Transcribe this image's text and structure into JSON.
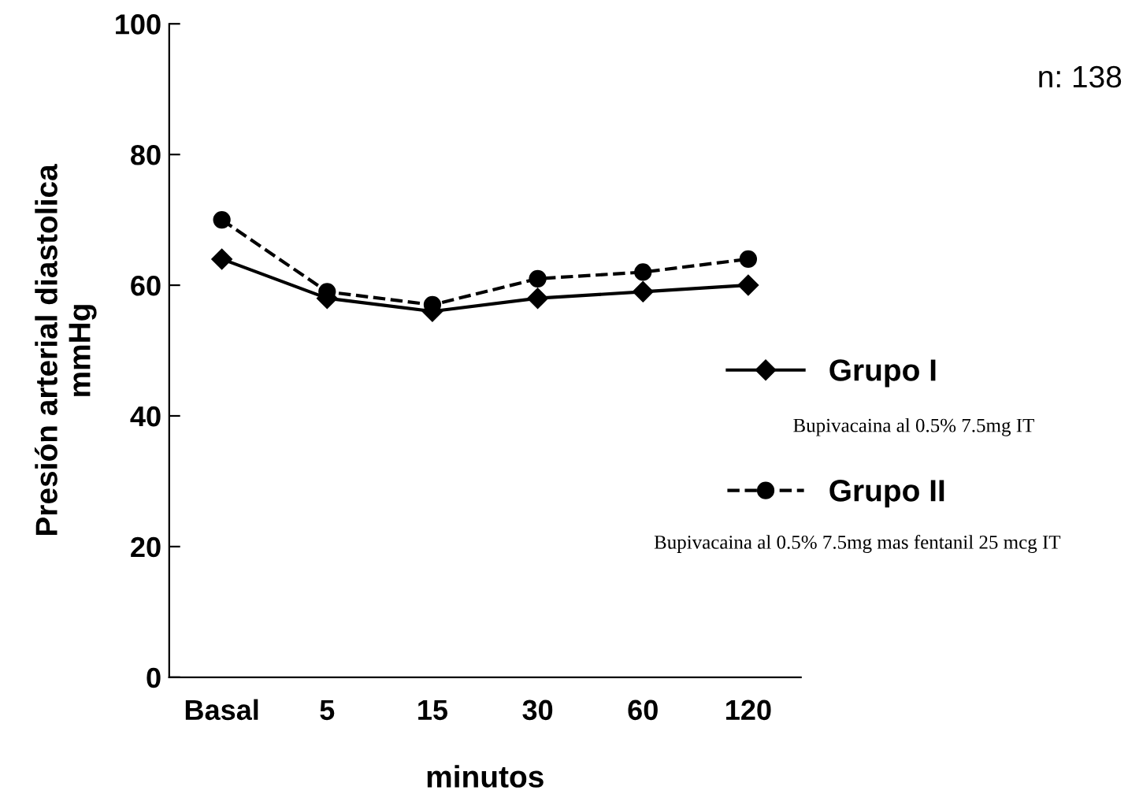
{
  "chart_data": {
    "type": "line",
    "xlabel": "minutos",
    "ylabel": "Presión arterial diastolica\nmmHg",
    "categories": [
      "Basal",
      "5",
      "15",
      "30",
      "60",
      "120"
    ],
    "series": [
      {
        "name": "Grupo I",
        "color": "#000000",
        "marker": "diamond",
        "line_style": "solid",
        "values": [
          64,
          58,
          56,
          58,
          59,
          60
        ]
      },
      {
        "name": "Grupo II",
        "color": "#000000",
        "marker": "circle",
        "line_style": "dashed",
        "values": [
          70,
          59,
          57,
          61,
          62,
          64
        ]
      }
    ],
    "ylim": [
      0,
      100
    ],
    "yticks": [
      0,
      20,
      40,
      60,
      80,
      100
    ],
    "grid": false,
    "legend": "right",
    "annotations": [
      "Bupivacaina al 0.5% 7.5mg IT",
      "Bupivacaina al 0.5% 7.5mg mas fentanil 25 mcg IT",
      "n: 138"
    ]
  }
}
